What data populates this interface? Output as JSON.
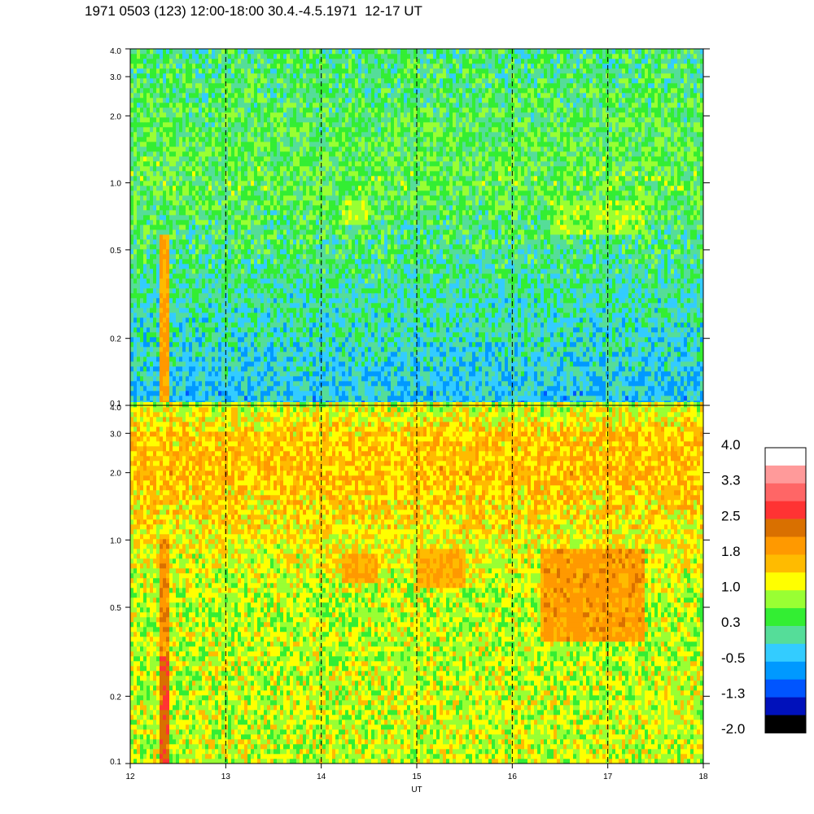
{
  "title": "1971 0503 (123) 12:00-18:00 30.4.-4.5.1971  12-17 UT",
  "chart_data": [
    {
      "type": "heatmap",
      "panel": "upper",
      "xlabel": "",
      "ylabel": "",
      "x_ticks": [
        12,
        13,
        14,
        15,
        16,
        17,
        18
      ],
      "xlim": [
        12,
        18
      ],
      "y_scale": "log",
      "ylim": [
        0.1,
        4.0
      ],
      "y_ticks": [
        0.1,
        0.2,
        0.5,
        1.0,
        2.0,
        3.0,
        4.0
      ],
      "y_tick_labels": [
        "0.1",
        "0.2",
        "0.5",
        "1.0",
        "2.0",
        "3.0",
        "4.0"
      ],
      "grid": "dashed vertical lines at each hour",
      "profile": [
        {
          "y": 0.1,
          "value": -0.4
        },
        {
          "y": 0.2,
          "value": -0.1
        },
        {
          "y": 0.5,
          "value": 0.2
        },
        {
          "y": 1.0,
          "value": 0.5
        },
        {
          "y": 2.0,
          "value": 0.4
        },
        {
          "y": 4.0,
          "value": 0.2
        }
      ],
      "features": [
        {
          "x": [
            12.3,
            12.4
          ],
          "y": [
            0.1,
            0.6
          ],
          "value": 1.8
        },
        {
          "x": [
            14.2,
            14.5
          ],
          "y": [
            0.65,
            0.85
          ],
          "value": 0.9
        },
        {
          "x": [
            16.4,
            17.4
          ],
          "y": [
            0.6,
            0.85
          ],
          "value": 0.8
        }
      ]
    },
    {
      "type": "heatmap",
      "panel": "lower",
      "xlabel": "UT",
      "ylabel": "",
      "x_ticks": [
        12,
        13,
        14,
        15,
        16,
        17,
        18
      ],
      "xlim": [
        12,
        18
      ],
      "y_scale": "log",
      "ylim": [
        0.1,
        4.0
      ],
      "y_ticks": [
        0.1,
        0.2,
        0.5,
        1.0,
        2.0,
        3.0,
        4.0
      ],
      "y_tick_labels": [
        "0.1",
        "0.2",
        "0.5",
        "1.0",
        "2.0",
        "3.0",
        "4.0"
      ],
      "grid": "dashed vertical lines at each hour",
      "profile": [
        {
          "y": 0.1,
          "value": 1.0
        },
        {
          "y": 0.2,
          "value": 1.0
        },
        {
          "y": 0.5,
          "value": 0.9
        },
        {
          "y": 1.0,
          "value": 1.2
        },
        {
          "y": 2.0,
          "value": 1.6
        },
        {
          "y": 3.0,
          "value": 1.5
        },
        {
          "y": 4.0,
          "value": 1.0
        }
      ],
      "features": [
        {
          "x": [
            12.3,
            12.42
          ],
          "y": [
            0.1,
            0.3
          ],
          "value": 2.4
        },
        {
          "x": [
            12.3,
            12.42
          ],
          "y": [
            0.3,
            1.0
          ],
          "value": 2.0
        },
        {
          "x": [
            14.2,
            14.6
          ],
          "y": [
            0.65,
            0.85
          ],
          "value": 1.8
        },
        {
          "x": [
            15.0,
            15.5
          ],
          "y": [
            0.6,
            0.9
          ],
          "value": 1.7
        },
        {
          "x": [
            16.3,
            17.4
          ],
          "y": [
            0.35,
            0.9
          ],
          "value": 1.9
        },
        {
          "x": [
            17.2,
            17.3
          ],
          "y": [
            0.6,
            0.8
          ],
          "value": 2.2
        }
      ]
    }
  ],
  "colorbar": {
    "labels": [
      "4.0",
      "3.3",
      "2.5",
      "1.8",
      "1.0",
      "0.3",
      "-0.5",
      "-1.3",
      "-2.0"
    ],
    "colors": [
      "#ffffff",
      "#ff9a9a",
      "#ff6666",
      "#ff3333",
      "#d97000",
      "#ff9900",
      "#ffbb00",
      "#ffff00",
      "#99ff33",
      "#33ee33",
      "#55dd99",
      "#33ccff",
      "#0099ff",
      "#0055ff",
      "#0011bb",
      "#000000"
    ]
  }
}
